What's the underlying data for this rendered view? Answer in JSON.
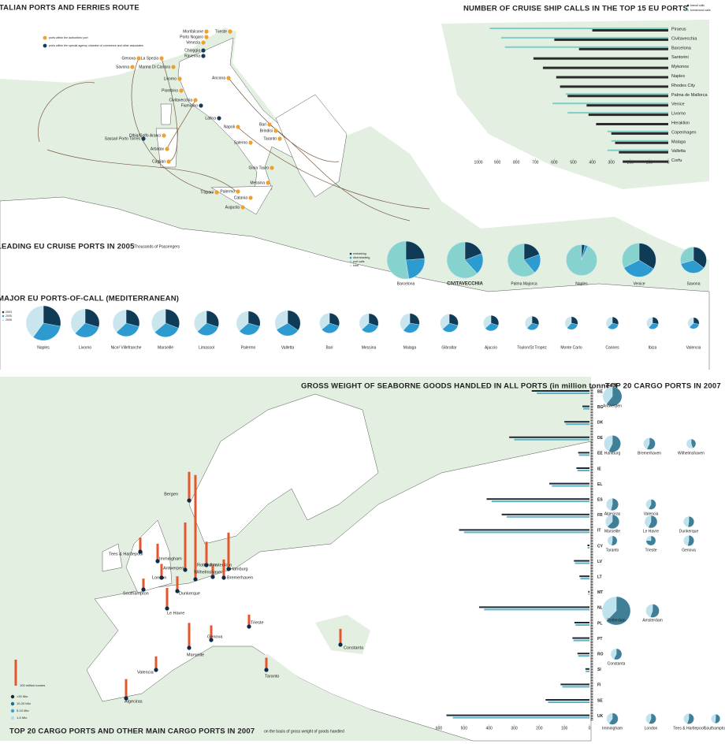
{
  "italy_map": {
    "title": "ITALIAN PORTS AND FERRIES ROUTE",
    "legend": [
      "ports within the authorities' port",
      "ports within the special agency chamber of commerce and other associates"
    ],
    "ports": [
      "Trieste",
      "Monfalcone",
      "Porto Nogaro",
      "Venezia",
      "Chioggia",
      "Ravenna",
      "Genova",
      "La Spezia",
      "Savona",
      "Marina Di Carrara",
      "Livorno",
      "Piombino",
      "Civitavecchia",
      "Fiumicino",
      "Ancona",
      "Latina",
      "Napoli",
      "Salerno",
      "Bari",
      "Brindisi",
      "Taranto",
      "Olbia/Golfo Aranci",
      "Sassari Porto Torres",
      "Arbatax",
      "Cagliari",
      "Gioia Tauro",
      "Messina",
      "Palermo",
      "Trapani",
      "Catania",
      "Augusta"
    ]
  },
  "chart_data": [
    {
      "type": "bar",
      "title": "NUMBER OF CRUISE SHIP CALLS IN THE TOP 15 EU PORTS",
      "categories": [
        "Piraeus",
        "Civitavecchia",
        "Barcelona",
        "Santorini",
        "Mykonos",
        "Naples",
        "Rhodes City",
        "Palma de Mallorca",
        "Venice",
        "Livorno",
        "Heraklion",
        "Copenhagen",
        "Malaga",
        "Valletta",
        "Corfu"
      ],
      "series": [
        {
          "name": "turnaround calls",
          "color": "#7fcfc9",
          "values": [
            940,
            880,
            860,
            null,
            null,
            null,
            null,
            540,
            610,
            530,
            null,
            320,
            300,
            320,
            null
          ]
        },
        {
          "name": "transit calls",
          "color": "#2b2b2b",
          "values": [
            400,
            600,
            470,
            710,
            660,
            590,
            570,
            530,
            430,
            420,
            380,
            300,
            280,
            260,
            240
          ]
        }
      ],
      "xlim": [
        0,
        1000
      ],
      "xticks": [
        1000,
        900,
        800,
        700,
        600,
        500,
        400,
        300,
        200,
        100,
        0
      ]
    },
    {
      "type": "pie",
      "title": "LEADING EU CRUISE PORTS IN 2005",
      "subtitle": "Thousands of Passengers",
      "categories": [
        "Barcelona",
        "CIVITAVECCHIA",
        "Palma Majorca",
        "Naples",
        "Venice",
        "Savona"
      ],
      "series": [
        {
          "name": "embarking",
          "color": "#0f3b57",
          "values": [
            420,
            310,
            260,
            40,
            480,
            300
          ]
        },
        {
          "name": "disembarking",
          "color": "#2e9bd0",
          "values": [
            420,
            310,
            260,
            40,
            480,
            300
          ]
        },
        {
          "name": "port calls",
          "color": "#86d2cf",
          "values": [
            930,
            1000,
            820,
            1100,
            460,
            250
          ]
        },
        {
          "name": "total",
          "color": "#c9e6ef",
          "values": [
            1765,
            1620,
            1340,
            1180,
            1420,
            850
          ]
        }
      ]
    },
    {
      "type": "pie",
      "title": "MAJOR EU PORTS-OF-CALL (MEDITERRANEAN)",
      "categories": [
        "Naples",
        "Livorno",
        "Nice/ Villefranche",
        "Marseille",
        "Limassol",
        "Palermo",
        "Valletta",
        "Bari",
        "Messina",
        "Malaga",
        "Gibraltar",
        "Ajaccio",
        "Toulon/St Tropez",
        "Monte Carlo",
        "Cannes",
        "Ibiza",
        "Valencia"
      ],
      "series": [
        {
          "name": "2003",
          "color": "#0f3b57",
          "values": [
            420,
            300,
            260,
            300,
            230,
            210,
            280,
            150,
            140,
            130,
            120,
            90,
            70,
            60,
            55,
            50,
            45
          ]
        },
        {
          "name": "2005",
          "color": "#2e9bd0",
          "values": [
            480,
            330,
            300,
            320,
            250,
            240,
            260,
            170,
            150,
            160,
            140,
            100,
            80,
            70,
            65,
            60,
            55
          ]
        },
        {
          "name": "2006",
          "color": "#c9e6ef",
          "values": [
            600,
            380,
            330,
            350,
            280,
            260,
            270,
            180,
            170,
            180,
            150,
            110,
            90,
            80,
            70,
            70,
            60
          ]
        }
      ]
    },
    {
      "type": "bar",
      "title": "GROSS WEIGHT OF SEABORNE GOODS HANDLED IN ALL PORTS (in million tonnes)",
      "categories": [
        "BE",
        "BG",
        "DK",
        "DE",
        "EE",
        "IE",
        "EL",
        "ES",
        "FR",
        "IT",
        "CY",
        "LV",
        "LT",
        "MT",
        "NL",
        "PL",
        "PT",
        "RO",
        "SI",
        "FI",
        "SE",
        "UK"
      ],
      "series": [
        {
          "color": "#1f2a33",
          "values": [
            230,
            28,
            100,
            320,
            45,
            52,
            160,
            410,
            350,
            520,
            8,
            62,
            40,
            5,
            440,
            60,
            68,
            48,
            16,
            115,
            175,
            570
          ]
        },
        {
          "color": "#5fb3c9",
          "values": [
            210,
            25,
            95,
            300,
            42,
            48,
            150,
            390,
            330,
            500,
            7,
            58,
            36,
            4,
            420,
            56,
            64,
            45,
            15,
            108,
            165,
            545
          ]
        }
      ],
      "xlim": [
        0,
        600
      ],
      "xticks": [
        600,
        500,
        400,
        300,
        200,
        100,
        0
      ]
    },
    {
      "type": "pie",
      "title": "TOP 20 CARGO PORTS IN 2007",
      "categories": [
        "Antwerpen",
        "Hamburg",
        "Bremerhaven",
        "Wilhelmshaven",
        "Algeciras",
        "Valencia",
        "Marseille",
        "Le Havre",
        "Dunkerque",
        "Taranto",
        "Trieste",
        "Genova",
        "Rotterdam",
        "Amsterdam",
        "Constanta",
        "Immingham",
        "London",
        "Tees & Hartlepool",
        "Southampton"
      ],
      "series": [
        {
          "color": "#3f7f98",
          "values": [
            110,
            80,
            40,
            20,
            40,
            30,
            60,
            45,
            30,
            25,
            35,
            30,
            250,
            50,
            35,
            40,
            30,
            30,
            22
          ]
        },
        {
          "color": "#bfe3ee",
          "values": [
            72,
            60,
            30,
            25,
            34,
            22,
            36,
            34,
            27,
            22,
            11,
            26,
            151,
            40,
            26,
            27,
            23,
            24,
            20
          ]
        }
      ]
    },
    {
      "type": "map",
      "title": "TOP 20 CARGO PORTS AND OTHER MAIN CARGO PORTS IN 2007",
      "subtitle": "on the basis of gross weight of goods handled",
      "categories": [
        "Bergen",
        "Immingham",
        "Tees & Hartlepool",
        "London",
        "Antwerpen",
        "Rotterdam",
        "Amsterdam",
        "Hamburg",
        "Wilhelmshaven",
        "Bremerhaven",
        "Southampton",
        "Dunkerque",
        "Le Havre",
        "Trieste",
        "Genova",
        "Marseille",
        "Valencia",
        "Taranto",
        "Algeciras",
        "Constanta"
      ],
      "values": [
        110,
        67,
        54,
        53,
        182,
        401,
        90,
        140,
        45,
        70,
        42,
        57,
        79,
        46,
        56,
        96,
        52,
        47,
        74,
        61
      ],
      "color": "#e4572e",
      "scale_label": "100 million tonnes",
      "scale_value": 100,
      "dot_legend": [
        {
          "label": ">20 Mio",
          "color": "#0b2c44"
        },
        {
          "label": "10-20 Mio",
          "color": "#1d6a94"
        },
        {
          "label": "5-10 Mio",
          "color": "#3aa2d6"
        },
        {
          "label": "1-5 Mio",
          "color": "#a9dcf0"
        }
      ]
    }
  ]
}
